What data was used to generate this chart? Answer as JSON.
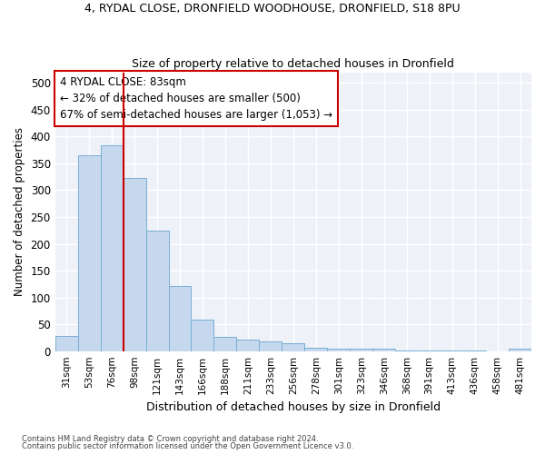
{
  "title1": "4, RYDAL CLOSE, DRONFIELD WOODHOUSE, DRONFIELD, S18 8PU",
  "title2": "Size of property relative to detached houses in Dronfield",
  "xlabel": "Distribution of detached houses by size in Dronfield",
  "ylabel": "Number of detached properties",
  "bar_color": "#c5d8ee",
  "bar_edge_color": "#7aaed4",
  "categories": [
    "31sqm",
    "53sqm",
    "76sqm",
    "98sqm",
    "121sqm",
    "143sqm",
    "166sqm",
    "188sqm",
    "211sqm",
    "233sqm",
    "256sqm",
    "278sqm",
    "301sqm",
    "323sqm",
    "346sqm",
    "368sqm",
    "391sqm",
    "413sqm",
    "436sqm",
    "458sqm",
    "481sqm"
  ],
  "values": [
    28,
    365,
    383,
    323,
    225,
    121,
    58,
    27,
    22,
    18,
    14,
    7,
    5,
    5,
    4,
    1,
    1,
    1,
    1,
    0,
    5
  ],
  "vline_x_index": 2,
  "vline_color": "#cc0000",
  "annotation_line1": "4 RYDAL CLOSE: 83sqm",
  "annotation_line2": "← 32% of detached houses are smaller (500)",
  "annotation_line3": "67% of semi-detached houses are larger (1,053) →",
  "ylim": [
    0,
    520
  ],
  "yticks": [
    0,
    50,
    100,
    150,
    200,
    250,
    300,
    350,
    400,
    450,
    500
  ],
  "footer1": "Contains HM Land Registry data © Crown copyright and database right 2024.",
  "footer2": "Contains public sector information licensed under the Open Government Licence v3.0.",
  "background_color": "#eef2f8"
}
